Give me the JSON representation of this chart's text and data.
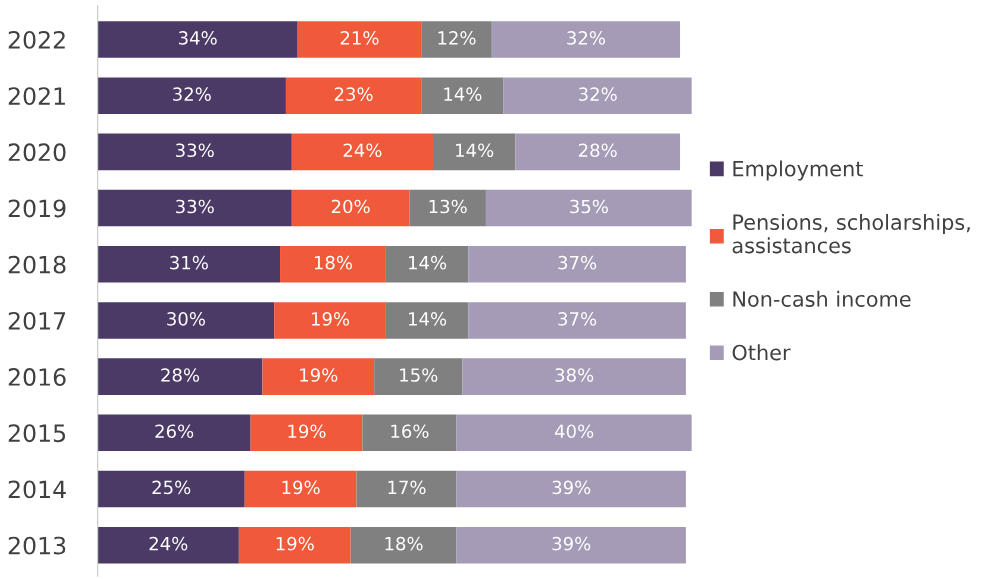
{
  "chart_data": {
    "type": "bar",
    "orientation": "horizontal",
    "stacked": true,
    "categories": [
      "2022",
      "2021",
      "2020",
      "2019",
      "2018",
      "2017",
      "2016",
      "2015",
      "2014",
      "2013"
    ],
    "xlim": [
      0,
      101
    ],
    "tick_labels": "y",
    "legend": "right",
    "series": [
      {
        "name": "Employment",
        "color": "#4b3a66",
        "values": [
          34,
          32,
          33,
          33,
          31,
          30,
          28,
          26,
          25,
          24
        ],
        "value_labels": [
          "34%",
          "32%",
          "33%",
          "33%",
          "31%",
          "30%",
          "28%",
          "26%",
          "25%",
          "24%"
        ]
      },
      {
        "name": "Pensions, scholarships,\nassistances",
        "color": "#f05a3a",
        "values": [
          21,
          23,
          24,
          20,
          18,
          19,
          19,
          19,
          19,
          19
        ],
        "value_labels": [
          "21%",
          "23%",
          "24%",
          "20%",
          "18%",
          "19%",
          "19%",
          "19%",
          "19%",
          "19%"
        ]
      },
      {
        "name": "Non-cash income",
        "color": "#808080",
        "values": [
          12,
          14,
          14,
          13,
          14,
          14,
          15,
          16,
          17,
          18
        ],
        "value_labels": [
          "12%",
          "14%",
          "14%",
          "13%",
          "14%",
          "14%",
          "15%",
          "16%",
          "17%",
          "18%"
        ]
      },
      {
        "name": "Other",
        "color": "#a59bb6",
        "values": [
          32,
          32,
          28,
          35,
          37,
          37,
          38,
          40,
          39,
          39
        ],
        "value_labels": [
          "32%",
          "32%",
          "28%",
          "35%",
          "37%",
          "37%",
          "38%",
          "40%",
          "39%",
          "39%"
        ]
      }
    ]
  }
}
